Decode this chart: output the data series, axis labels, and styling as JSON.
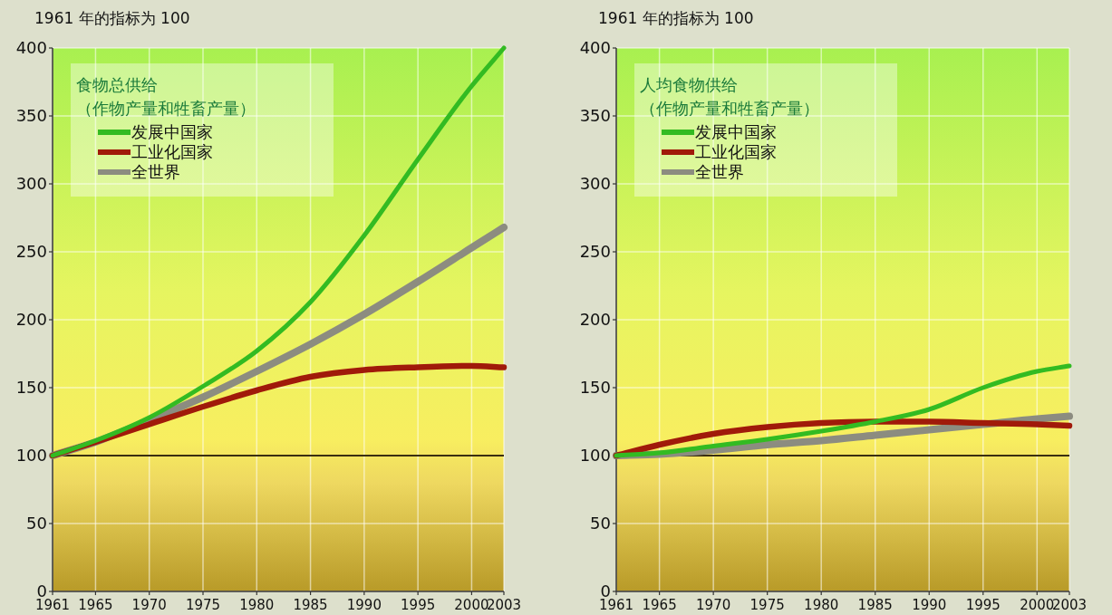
{
  "chart_data": [
    {
      "type": "line",
      "ylabel": "1961 年的指标为 100",
      "legend_title": "食物总供给（作物产量和牲畜产量）",
      "legend": "top left",
      "grid": true,
      "line_style": "solid",
      "marker": "none",
      "x": [
        1961,
        1965,
        1970,
        1975,
        1980,
        1985,
        1990,
        1995,
        2000,
        2003
      ],
      "xlim": [
        1961,
        2003
      ],
      "xticks": [
        1961,
        1965,
        1970,
        1975,
        1980,
        1985,
        1990,
        1995,
        2000,
        2003
      ],
      "ylim": [
        0,
        400
      ],
      "yticks": [
        0,
        50,
        100,
        150,
        200,
        250,
        300,
        350,
        400
      ],
      "ref_lines": [
        {
          "axis": "y",
          "value": 100,
          "label": null,
          "color": "#3a2e10"
        }
      ],
      "series": [
        {
          "name": "发展中国家",
          "color": "#33bb22",
          "values": [
            100,
            111,
            128,
            151,
            177,
            213,
            262,
            318,
            372,
            400
          ]
        },
        {
          "name": "工业化国家",
          "color": "#a01a0a",
          "values": [
            100,
            110,
            123,
            136,
            148,
            158,
            163,
            165,
            166,
            165
          ]
        },
        {
          "name": "全世界",
          "color": "#8c8c80",
          "values": [
            100,
            110,
            126,
            143,
            162,
            182,
            204,
            228,
            253,
            268
          ]
        }
      ]
    },
    {
      "type": "line",
      "ylabel": "1961 年的指标为 100",
      "legend_title": "人均食物供给（作物产量和牲畜产量）",
      "legend": "top left",
      "grid": true,
      "line_style": "solid",
      "marker": "none",
      "x": [
        1961,
        1965,
        1970,
        1975,
        1980,
        1985,
        1990,
        1995,
        2000,
        2003
      ],
      "xlim": [
        1961,
        2003
      ],
      "xticks": [
        1961,
        1965,
        1970,
        1975,
        1980,
        1985,
        1990,
        1995,
        2000,
        2003
      ],
      "ylim": [
        0,
        400
      ],
      "yticks": [
        0,
        50,
        100,
        150,
        200,
        250,
        300,
        350,
        400
      ],
      "ref_lines": [
        {
          "axis": "y",
          "value": 100,
          "label": null,
          "color": "#3a2e10"
        }
      ],
      "series": [
        {
          "name": "发展中国家",
          "color": "#33bb22",
          "values": [
            100,
            102,
            107,
            112,
            118,
            125,
            134,
            150,
            162,
            166
          ]
        },
        {
          "name": "工业化国家",
          "color": "#a01a0a",
          "values": [
            100,
            108,
            116,
            121,
            124,
            125,
            125,
            124,
            123,
            122
          ]
        },
        {
          "name": "全世界",
          "color": "#8c8c80",
          "values": [
            100,
            101,
            104,
            108,
            111,
            115,
            119,
            123,
            127,
            129
          ]
        }
      ]
    }
  ]
}
